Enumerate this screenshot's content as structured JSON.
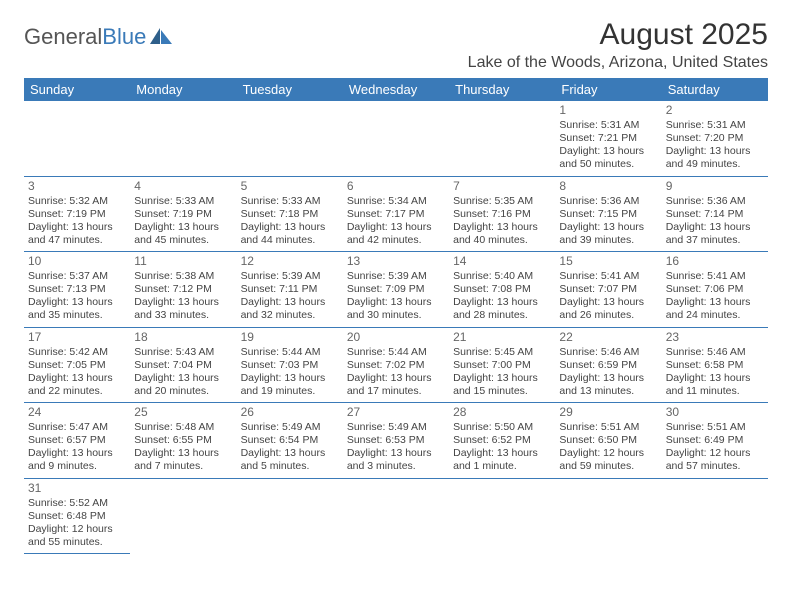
{
  "brand": {
    "part1": "General",
    "part2": "Blue",
    "logo_color": "#3a7ab8"
  },
  "title": "August 2025",
  "location": "Lake of the Woods, Arizona, United States",
  "colors": {
    "header_bg": "#3a7ab8",
    "header_fg": "#ffffff",
    "rule": "#3a7ab8"
  },
  "day_headers": [
    "Sunday",
    "Monday",
    "Tuesday",
    "Wednesday",
    "Thursday",
    "Friday",
    "Saturday"
  ],
  "weeks": [
    [
      null,
      null,
      null,
      null,
      null,
      {
        "n": "1",
        "sr": "5:31 AM",
        "ss": "7:21 PM",
        "dl": "13 hours and 50 minutes."
      },
      {
        "n": "2",
        "sr": "5:31 AM",
        "ss": "7:20 PM",
        "dl": "13 hours and 49 minutes."
      }
    ],
    [
      {
        "n": "3",
        "sr": "5:32 AM",
        "ss": "7:19 PM",
        "dl": "13 hours and 47 minutes."
      },
      {
        "n": "4",
        "sr": "5:33 AM",
        "ss": "7:19 PM",
        "dl": "13 hours and 45 minutes."
      },
      {
        "n": "5",
        "sr": "5:33 AM",
        "ss": "7:18 PM",
        "dl": "13 hours and 44 minutes."
      },
      {
        "n": "6",
        "sr": "5:34 AM",
        "ss": "7:17 PM",
        "dl": "13 hours and 42 minutes."
      },
      {
        "n": "7",
        "sr": "5:35 AM",
        "ss": "7:16 PM",
        "dl": "13 hours and 40 minutes."
      },
      {
        "n": "8",
        "sr": "5:36 AM",
        "ss": "7:15 PM",
        "dl": "13 hours and 39 minutes."
      },
      {
        "n": "9",
        "sr": "5:36 AM",
        "ss": "7:14 PM",
        "dl": "13 hours and 37 minutes."
      }
    ],
    [
      {
        "n": "10",
        "sr": "5:37 AM",
        "ss": "7:13 PM",
        "dl": "13 hours and 35 minutes."
      },
      {
        "n": "11",
        "sr": "5:38 AM",
        "ss": "7:12 PM",
        "dl": "13 hours and 33 minutes."
      },
      {
        "n": "12",
        "sr": "5:39 AM",
        "ss": "7:11 PM",
        "dl": "13 hours and 32 minutes."
      },
      {
        "n": "13",
        "sr": "5:39 AM",
        "ss": "7:09 PM",
        "dl": "13 hours and 30 minutes."
      },
      {
        "n": "14",
        "sr": "5:40 AM",
        "ss": "7:08 PM",
        "dl": "13 hours and 28 minutes."
      },
      {
        "n": "15",
        "sr": "5:41 AM",
        "ss": "7:07 PM",
        "dl": "13 hours and 26 minutes."
      },
      {
        "n": "16",
        "sr": "5:41 AM",
        "ss": "7:06 PM",
        "dl": "13 hours and 24 minutes."
      }
    ],
    [
      {
        "n": "17",
        "sr": "5:42 AM",
        "ss": "7:05 PM",
        "dl": "13 hours and 22 minutes."
      },
      {
        "n": "18",
        "sr": "5:43 AM",
        "ss": "7:04 PM",
        "dl": "13 hours and 20 minutes."
      },
      {
        "n": "19",
        "sr": "5:44 AM",
        "ss": "7:03 PM",
        "dl": "13 hours and 19 minutes."
      },
      {
        "n": "20",
        "sr": "5:44 AM",
        "ss": "7:02 PM",
        "dl": "13 hours and 17 minutes."
      },
      {
        "n": "21",
        "sr": "5:45 AM",
        "ss": "7:00 PM",
        "dl": "13 hours and 15 minutes."
      },
      {
        "n": "22",
        "sr": "5:46 AM",
        "ss": "6:59 PM",
        "dl": "13 hours and 13 minutes."
      },
      {
        "n": "23",
        "sr": "5:46 AM",
        "ss": "6:58 PM",
        "dl": "13 hours and 11 minutes."
      }
    ],
    [
      {
        "n": "24",
        "sr": "5:47 AM",
        "ss": "6:57 PM",
        "dl": "13 hours and 9 minutes."
      },
      {
        "n": "25",
        "sr": "5:48 AM",
        "ss": "6:55 PM",
        "dl": "13 hours and 7 minutes."
      },
      {
        "n": "26",
        "sr": "5:49 AM",
        "ss": "6:54 PM",
        "dl": "13 hours and 5 minutes."
      },
      {
        "n": "27",
        "sr": "5:49 AM",
        "ss": "6:53 PM",
        "dl": "13 hours and 3 minutes."
      },
      {
        "n": "28",
        "sr": "5:50 AM",
        "ss": "6:52 PM",
        "dl": "13 hours and 1 minute."
      },
      {
        "n": "29",
        "sr": "5:51 AM",
        "ss": "6:50 PM",
        "dl": "12 hours and 59 minutes."
      },
      {
        "n": "30",
        "sr": "5:51 AM",
        "ss": "6:49 PM",
        "dl": "12 hours and 57 minutes."
      }
    ],
    [
      {
        "n": "31",
        "sr": "5:52 AM",
        "ss": "6:48 PM",
        "dl": "12 hours and 55 minutes."
      },
      null,
      null,
      null,
      null,
      null,
      null
    ]
  ],
  "labels": {
    "sunrise": "Sunrise:",
    "sunset": "Sunset:",
    "daylight": "Daylight:"
  }
}
